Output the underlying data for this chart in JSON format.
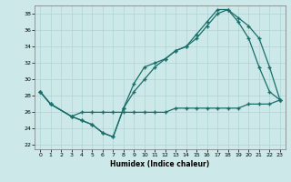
{
  "xlabel": "Humidex (Indice chaleur)",
  "bg_color": "#cce8e8",
  "grid_color": "#aad4d4",
  "line_color": "#1a6e6a",
  "xlim": [
    -0.5,
    23.5
  ],
  "ylim": [
    21.5,
    39.0
  ],
  "yticks": [
    22,
    24,
    26,
    28,
    30,
    32,
    34,
    36,
    38
  ],
  "xticks": [
    0,
    1,
    2,
    3,
    4,
    5,
    6,
    7,
    8,
    9,
    10,
    11,
    12,
    13,
    14,
    15,
    16,
    17,
    18,
    19,
    20,
    21,
    22,
    23
  ],
  "line1_x": [
    0,
    1,
    3,
    4,
    5,
    6,
    7,
    8,
    9,
    10,
    11,
    12,
    13,
    14,
    15,
    16,
    17,
    18,
    19,
    20,
    21,
    22,
    23
  ],
  "line1_y": [
    28.5,
    27.0,
    25.5,
    26.0,
    26.0,
    26.0,
    26.0,
    26.0,
    26.0,
    26.0,
    26.0,
    26.0,
    26.5,
    26.5,
    26.5,
    26.5,
    26.5,
    26.5,
    26.5,
    27.0,
    27.0,
    27.0,
    27.5
  ],
  "line2_x": [
    0,
    1,
    3,
    4,
    5,
    6,
    7,
    8,
    9,
    10,
    11,
    12,
    13,
    14,
    15,
    16,
    17,
    18,
    19,
    20,
    21,
    22,
    23
  ],
  "line2_y": [
    28.5,
    27.0,
    25.5,
    25.0,
    24.5,
    23.5,
    23.0,
    26.5,
    29.5,
    31.5,
    32.0,
    32.5,
    33.5,
    34.0,
    35.0,
    36.5,
    38.0,
    38.5,
    37.0,
    35.0,
    31.5,
    28.5,
    27.5
  ],
  "line3_x": [
    0,
    1,
    3,
    4,
    5,
    6,
    7,
    8,
    9,
    10,
    11,
    12,
    13,
    14,
    15,
    16,
    17,
    18,
    19,
    20,
    21,
    22,
    23
  ],
  "line3_y": [
    28.5,
    27.0,
    25.5,
    25.0,
    24.5,
    23.5,
    23.0,
    26.5,
    28.5,
    30.0,
    31.5,
    32.5,
    33.5,
    34.0,
    35.5,
    37.0,
    38.5,
    38.5,
    37.5,
    36.5,
    35.0,
    31.5,
    27.5
  ]
}
